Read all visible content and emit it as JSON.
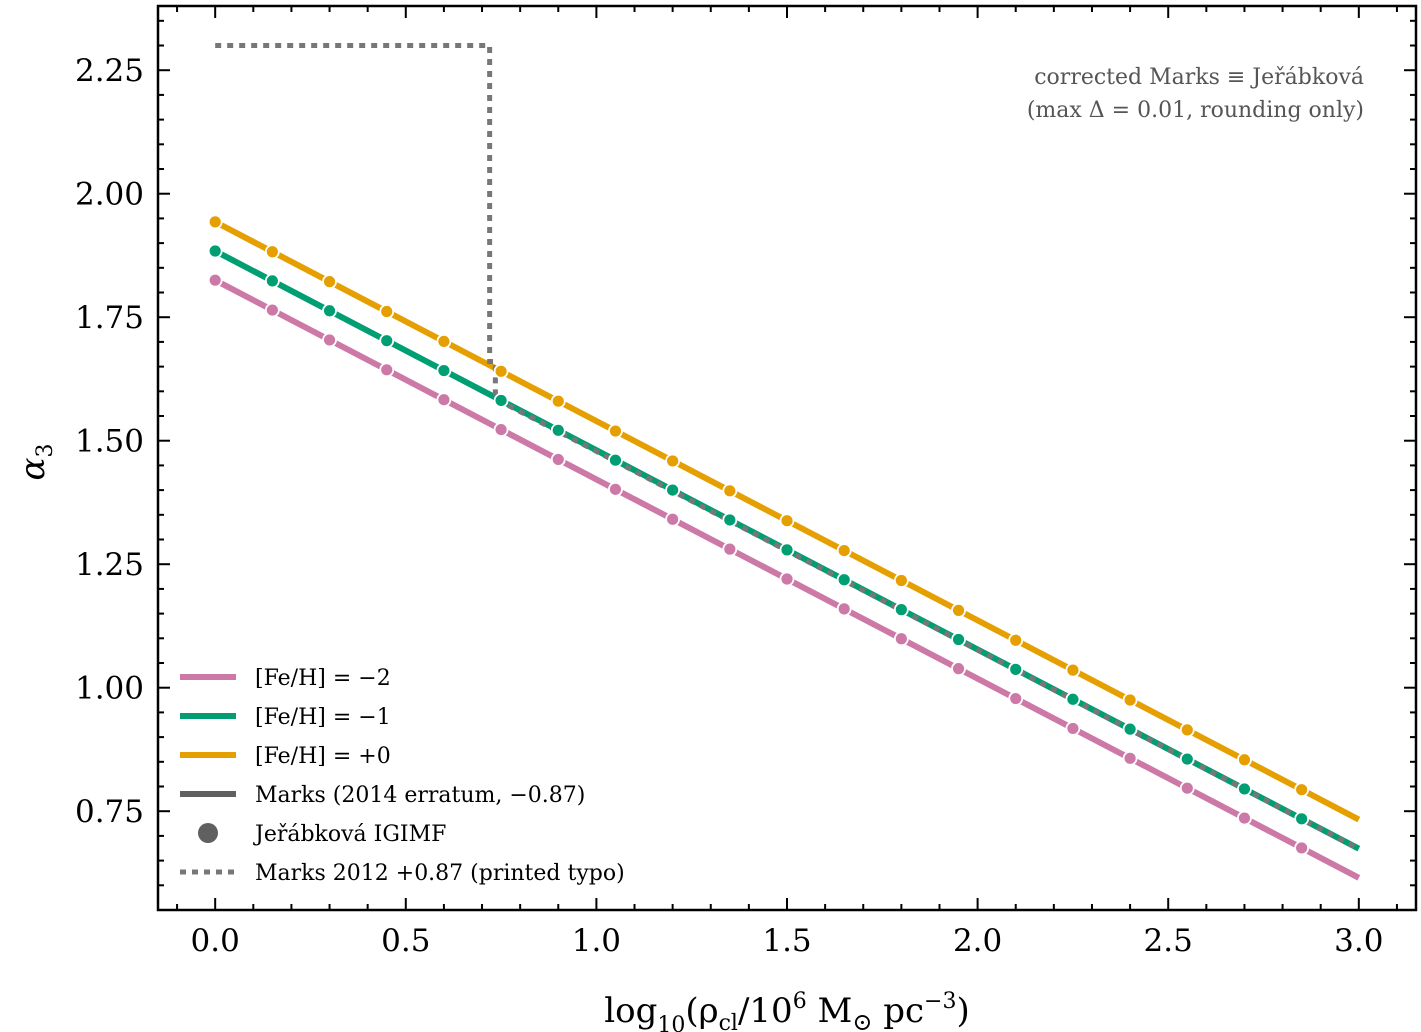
{
  "chart_data": {
    "type": "line",
    "xlabel": "log₁₀(ρcl/10⁶ M⊙ pc⁻³)",
    "ylabel": "α₃",
    "xlim": [
      -0.15,
      3.15
    ],
    "ylim": [
      0.55,
      2.38
    ],
    "x_ticks": [
      "0.0",
      "0.5",
      "1.0",
      "1.5",
      "2.0",
      "2.5",
      "3.0"
    ],
    "x_tick_values": [
      0.0,
      0.5,
      1.0,
      1.5,
      2.0,
      2.5,
      3.0
    ],
    "y_ticks": [
      "0.75",
      "1.00",
      "1.25",
      "1.50",
      "1.75",
      "2.00",
      "2.25"
    ],
    "y_tick_values": [
      0.75,
      1.0,
      1.25,
      1.5,
      1.75,
      2.0,
      2.25
    ],
    "grid": false,
    "legend_position": "lower-left",
    "series": [
      {
        "name": "[Fe/H] = −2",
        "color": "#cc79a7",
        "fe_h": -2,
        "intercept": 1.825,
        "slope": -0.4033,
        "x_range": [
          0.0,
          3.0
        ]
      },
      {
        "name": "[Fe/H] = −1",
        "color": "#009e73",
        "fe_h": -1,
        "intercept": 1.884,
        "slope": -0.4033,
        "x_range": [
          0.0,
          3.0
        ]
      },
      {
        "name": "[Fe/H] = +0",
        "color": "#e69f00",
        "fe_h": 0,
        "intercept": 1.943,
        "slope": -0.4033,
        "x_range": [
          0.0,
          3.0
        ]
      }
    ],
    "points_x": [
      0.0,
      0.15,
      0.3,
      0.45,
      0.6,
      0.75,
      0.9,
      1.05,
      1.2,
      1.35,
      1.5,
      1.65,
      1.8,
      1.95,
      2.1,
      2.25,
      2.4,
      2.55,
      2.7,
      2.85
    ],
    "marks_erratum": {
      "name": "Marks (2014 erratum, −0.87)",
      "color": "#606060"
    },
    "jerabkova": {
      "name": "Jeřábková IGIMF",
      "color": "#606060"
    },
    "marks_2012": {
      "name": "Marks 2012 +0.87 (printed typo)",
      "color": "#777777",
      "x": [
        0.0,
        0.72,
        0.72,
        0.735,
        0.735,
        3.0
      ],
      "y": [
        2.3,
        2.3,
        1.66,
        1.66,
        1.585,
        0.674
      ]
    },
    "annotation": [
      "corrected Marks ≡ Jeřábková",
      "(max Δ = 0.01, rounding only)"
    ]
  }
}
